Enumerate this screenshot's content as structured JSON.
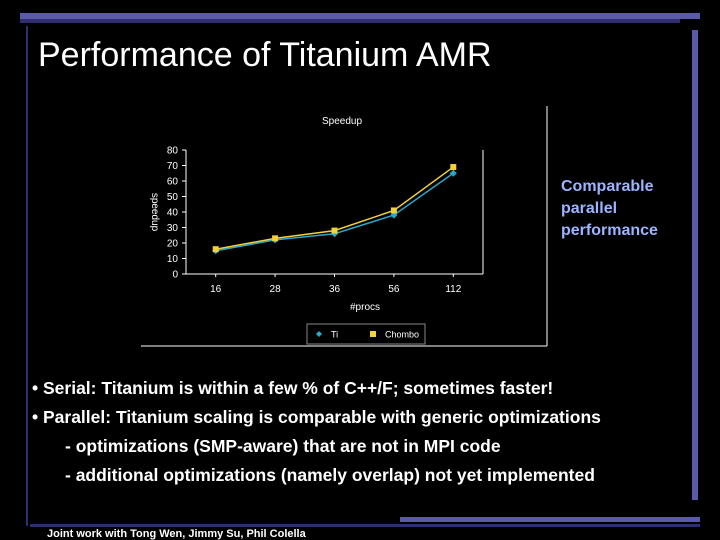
{
  "slide": {
    "title": "Performance of Titanium AMR",
    "callout": [
      "Comparable",
      "parallel",
      "performance"
    ],
    "bullets": [
      "• Serial: Titanium is within a few % of C++/F; sometimes faster!",
      "• Parallel: Titanium scaling is comparable with generic optimizations"
    ],
    "sub_bullets": [
      "- optimizations (SMP-aware) that are not in MPI code",
      "- additional optimizations (namely overlap) not yet implemented"
    ],
    "footer": "Joint work with Tong Wen, Jimmy Su, Phil Colella",
    "colors": {
      "background": "#000000",
      "accent": "#9db4ff",
      "deco_bar": "#5a5aa8"
    }
  },
  "chart_data": {
    "type": "line",
    "title": "Speedup",
    "xlabel": "#procs",
    "ylabel": "speedup",
    "categories": [
      "16",
      "28",
      "36",
      "56",
      "112"
    ],
    "ylim": [
      0,
      80
    ],
    "yticks": [
      "0",
      "10",
      "20",
      "30",
      "40",
      "50",
      "60",
      "70",
      "80"
    ],
    "grid": false,
    "legend_position": "bottom",
    "series": [
      {
        "name": "Ti",
        "values": [
          15,
          22,
          26,
          38,
          65
        ],
        "color": "#2aa7c9",
        "marker": "diamond"
      },
      {
        "name": "Chombo",
        "values": [
          16,
          23,
          28,
          41,
          69
        ],
        "color": "#f2d23a",
        "marker": "square"
      }
    ]
  }
}
